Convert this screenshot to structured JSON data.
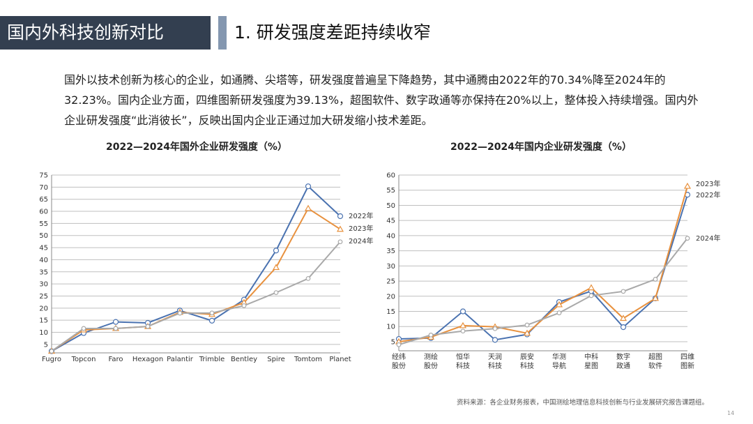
{
  "header": {
    "section": "国内外科技创新对比",
    "subtitle": "1. 研发强度差距持续收窄"
  },
  "paragraph": "国外以技术创新为核心的企业，如通腾、尖塔等，研发强度普遍呈下降趋势，其中通腾由2022年的70.34%降至2024年的32.23%。国内企业方面，四维图新研发强度为39.13%，超图软件、数字政通等亦保持在20%以上，整体投入持续增强。国内外企业研发强度“此消彼长”，反映出国内企业正通过加大研发缩小技术差距。",
  "colors": {
    "2022年": "#4a72b0",
    "2023年": "#e8913e",
    "2024年": "#a9a9a9"
  },
  "chart_data": [
    {
      "type": "line",
      "title": "2022—2024年国外企业研发强度（%）",
      "ylim": [
        1.5,
        75
      ],
      "yticks": [
        5,
        10,
        15,
        20,
        25,
        30,
        35,
        40,
        45,
        50,
        55,
        60,
        65,
        70,
        75
      ],
      "grid": true,
      "legend": "right (labels at line ends)",
      "categories": [
        "Fugro",
        "Topcon",
        "Faro",
        "Hexagon",
        "Palantir",
        "Trimble",
        "Bentley",
        "Spire",
        "Tomtom",
        "Planet"
      ],
      "series": [
        {
          "name": "2022年",
          "marker": "circle",
          "values": [
            2.2,
            9.7,
            14.3,
            13.9,
            19.0,
            14.8,
            23.5,
            43.8,
            70.34,
            58.0
          ]
        },
        {
          "name": "2023年",
          "marker": "triangle",
          "values": [
            2.2,
            11.0,
            11.6,
            12.4,
            18.3,
            17.4,
            22.3,
            36.8,
            61.2,
            52.6
          ]
        },
        {
          "name": "2024年",
          "marker": "circle-small",
          "values": [
            2.2,
            11.6,
            11.6,
            12.4,
            17.9,
            18.0,
            21.0,
            26.4,
            32.23,
            47.4
          ]
        }
      ]
    },
    {
      "type": "line",
      "title": "2022—2024年国内企业研发强度（%）",
      "ylim": [
        2,
        60
      ],
      "yticks": [
        5,
        10,
        15,
        20,
        25,
        30,
        35,
        40,
        45,
        50,
        55,
        60
      ],
      "grid": true,
      "legend": "right (labels at line ends)",
      "categories": [
        "经纬\n股份",
        "测绘\n股份",
        "恒华\n科技",
        "天润\n科技",
        "辰安\n科技",
        "华测\n导航",
        "中科\n星图",
        "数字\n政通",
        "超图\n软件",
        "四维\n图新"
      ],
      "series": [
        {
          "name": "2022年",
          "marker": "circle",
          "values": [
            5.9,
            6.2,
            15.0,
            5.6,
            7.4,
            18.1,
            21.7,
            9.8,
            19.3,
            53.5
          ]
        },
        {
          "name": "2023年",
          "marker": "triangle",
          "values": [
            5.0,
            6.5,
            10.3,
            9.9,
            7.8,
            17.2,
            22.8,
            12.7,
            19.3,
            56.3
          ]
        },
        {
          "name": "2024年",
          "marker": "circle-small",
          "values": [
            4.0,
            7.2,
            8.5,
            9.3,
            10.5,
            14.5,
            20.2,
            21.6,
            25.6,
            39.13
          ]
        }
      ]
    }
  ],
  "footer": {
    "source": "资料来源：各企业财务报表，中国测绘地理信息科技创新与行业发展研究报告课题组。",
    "page": "14"
  }
}
